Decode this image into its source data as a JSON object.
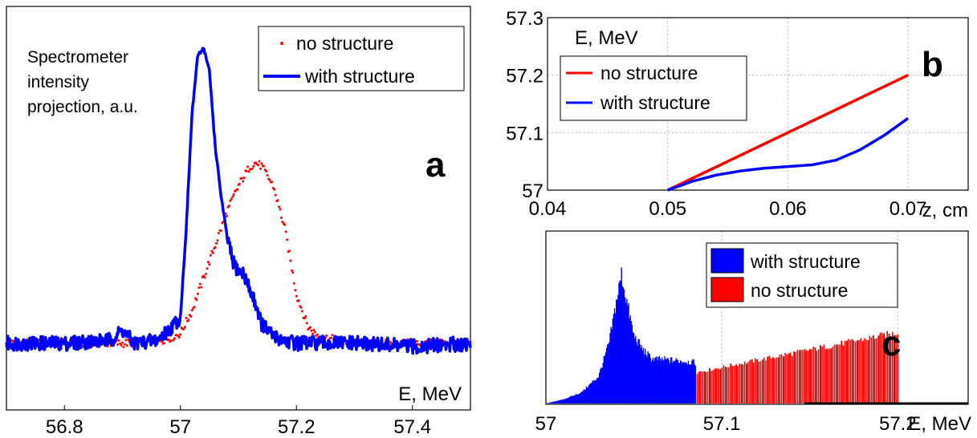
{
  "chart_data": [
    {
      "type": "line",
      "panel_label": "a",
      "ylabel": "Spectrometer\nintensity\nprojection, a.u.",
      "xlabel": "E, MeV",
      "xlim": [
        56.7,
        57.5
      ],
      "ylim": [
        0,
        1
      ],
      "xticks": [
        "56.8",
        "57",
        "57.2",
        "57.4"
      ],
      "grid": false,
      "legend_position": "top-right",
      "series": [
        {
          "name": "no structure",
          "style": "dotted",
          "color": "#ff0000",
          "x": [
            56.7,
            56.8,
            56.9,
            56.95,
            56.98,
            57.0,
            57.02,
            57.04,
            57.06,
            57.08,
            57.1,
            57.12,
            57.13,
            57.14,
            57.16,
            57.18,
            57.2,
            57.22,
            57.24,
            57.3,
            57.4,
            57.5
          ],
          "y": [
            0.1,
            0.1,
            0.1,
            0.105,
            0.115,
            0.13,
            0.2,
            0.3,
            0.4,
            0.5,
            0.58,
            0.64,
            0.65,
            0.64,
            0.58,
            0.45,
            0.25,
            0.15,
            0.12,
            0.1,
            0.1,
            0.1
          ]
        },
        {
          "name": "with structure",
          "style": "solid",
          "color": "#0000ff",
          "x": [
            56.7,
            56.8,
            56.88,
            56.9,
            56.92,
            56.96,
            56.98,
            57.0,
            57.01,
            57.02,
            57.03,
            57.04,
            57.05,
            57.06,
            57.07,
            57.08,
            57.09,
            57.1,
            57.11,
            57.12,
            57.13,
            57.14,
            57.16,
            57.2,
            57.3,
            57.4,
            57.5
          ],
          "y": [
            0.1,
            0.1,
            0.11,
            0.14,
            0.1,
            0.11,
            0.14,
            0.18,
            0.45,
            0.8,
            0.98,
            1.0,
            0.93,
            0.7,
            0.55,
            0.43,
            0.35,
            0.32,
            0.31,
            0.26,
            0.22,
            0.16,
            0.12,
            0.1,
            0.1,
            0.09,
            0.1
          ]
        }
      ]
    },
    {
      "type": "line",
      "panel_label": "b",
      "ylabel": "E, MeV",
      "xlabel": "z, cm",
      "xlim": [
        0.04,
        0.075
      ],
      "ylim": [
        57.0,
        57.3
      ],
      "xticks": [
        "0.04",
        "0.05",
        "0.06",
        "0.07"
      ],
      "yticks": [
        "57",
        "57.1",
        "57.2",
        "57.3"
      ],
      "grid": true,
      "legend_position": "top-left",
      "series": [
        {
          "name": "no structure",
          "color": "#ff0000",
          "x": [
            0.05,
            0.07
          ],
          "y": [
            57.0,
            57.2
          ]
        },
        {
          "name": "with structure",
          "color": "#0000ff",
          "x": [
            0.05,
            0.052,
            0.054,
            0.056,
            0.058,
            0.06,
            0.062,
            0.064,
            0.066,
            0.068,
            0.07
          ],
          "y": [
            57.0,
            57.015,
            57.026,
            57.033,
            57.038,
            57.041,
            57.044,
            57.052,
            57.07,
            57.095,
            57.125
          ]
        }
      ]
    },
    {
      "type": "bar",
      "panel_label": "c",
      "xlabel": "E, MeV",
      "xlim": [
        57.0,
        57.24
      ],
      "ylim": [
        0,
        1
      ],
      "xticks": [
        "57",
        "57.1",
        "57.2"
      ],
      "grid": true,
      "legend_position": "top-right",
      "series": [
        {
          "name": "with structure",
          "color": "#0000ff",
          "x": [
            57.0,
            57.01,
            57.02,
            57.03,
            57.036,
            57.04,
            57.043,
            57.046,
            57.05,
            57.055,
            57.06,
            57.07,
            57.08,
            57.085
          ],
          "y": [
            0.0,
            0.03,
            0.08,
            0.2,
            0.45,
            0.75,
            0.95,
            0.75,
            0.5,
            0.4,
            0.33,
            0.32,
            0.31,
            0.3
          ]
        },
        {
          "name": "no structure",
          "color": "#ff0000",
          "x": [
            57.0,
            57.02,
            57.04,
            57.06,
            57.08,
            57.1,
            57.12,
            57.14,
            57.16,
            57.18,
            57.2
          ],
          "y": [
            0.0,
            0.05,
            0.1,
            0.15,
            0.21,
            0.26,
            0.31,
            0.36,
            0.41,
            0.46,
            0.51
          ]
        }
      ]
    }
  ]
}
